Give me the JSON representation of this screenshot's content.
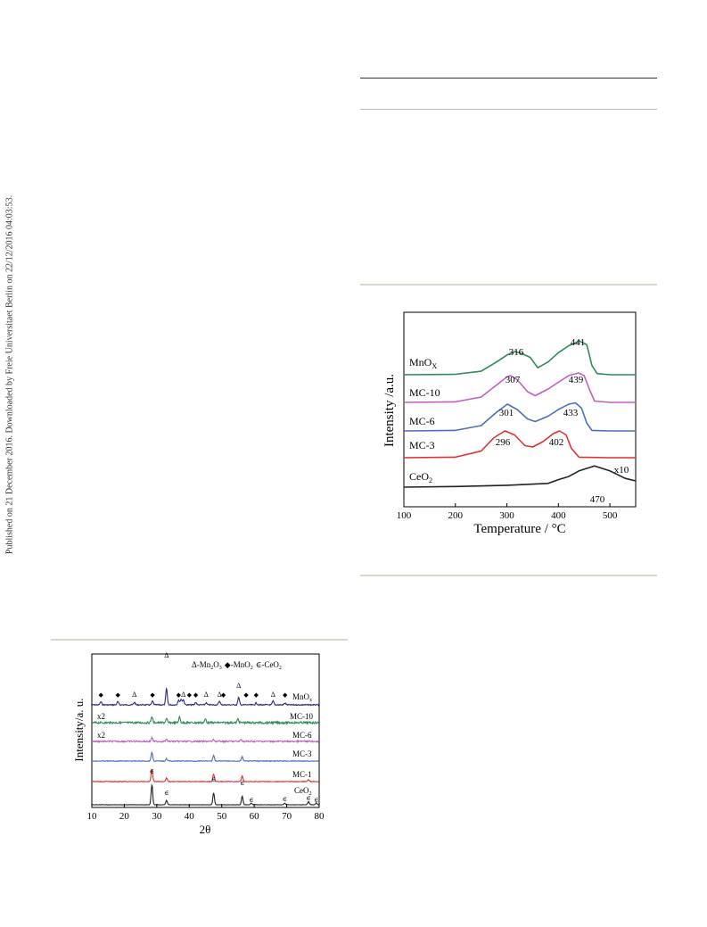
{
  "side_note": "Published on 21 December 2016. Downloaded by Freie Universitaet Berlin on 22/12/2016 04:03:53.",
  "tpr_chart": {
    "ylabel": "Intensity /a.u.",
    "xlabel": "Temperature / °C",
    "x_ticks": [
      "100",
      "200",
      "300",
      "400",
      "500"
    ],
    "series_labels": {
      "mnox": "MnO",
      "mnox_sub": "X",
      "mc10": "MC-10",
      "mc6": "MC-6",
      "mc3": "MC-3",
      "ceo2": "CeO",
      "ceo2_sub": "2"
    },
    "peak_labels": {
      "mnox_1": "316",
      "mnox_2": "441",
      "mc10_1": "307",
      "mc10_2": "439",
      "mc6_1": "301",
      "mc6_2": "433",
      "mc3_1": "296",
      "mc3_2": "402",
      "ceo2_1": "470"
    },
    "scale_note": "x10"
  },
  "xrd_chart": {
    "ylabel": "Intensity/a. u.",
    "xlabel": "2θ",
    "x_ticks": [
      "10",
      "20",
      "30",
      "40",
      "50",
      "60",
      "70",
      "80"
    ],
    "legend": {
      "tri": "Δ",
      "mn2o3_a": "-Mn",
      "mn2o3_s1": "2",
      "mn2o3_b": "O",
      "mn2o3_s2": "3",
      "dia": "◆",
      "mno2_a": "-MnO",
      "mno2_s": "2",
      "ceo2_sym": "∈",
      "ceo2_a": "-CeO",
      "ceo2_s": "2"
    },
    "series_labels": {
      "mnox": "MnO",
      "mnox_sub": "x",
      "mc10": "MC-10",
      "mc6": "MC-6",
      "mc3": "MC-3",
      "mc1": "MC-1",
      "ceo2": "CeO",
      "ceo2_sub": "2"
    },
    "scale_notes": {
      "mc10": "x2",
      "mc6": "x2"
    }
  },
  "chart_data": [
    {
      "type": "line",
      "xlabel": "Temperature / °C",
      "ylabel": "Intensity /a.u.",
      "xlim": [
        100,
        550
      ],
      "series": [
        {
          "name": "MnOX",
          "color": "#2e8b57",
          "x": [
            100,
            200,
            250,
            280,
            300,
            316,
            330,
            345,
            360,
            380,
            400,
            420,
            441,
            455,
            465,
            475,
            500,
            550
          ],
          "y": [
            0,
            0.02,
            0.15,
            0.55,
            0.85,
            1.0,
            0.9,
            0.75,
            0.3,
            0.55,
            0.95,
            1.25,
            1.45,
            1.3,
            0.4,
            0.05,
            0,
            0
          ]
        },
        {
          "name": "MC-10",
          "color": "#c060c0",
          "x": [
            100,
            200,
            250,
            280,
            300,
            307,
            320,
            340,
            355,
            380,
            400,
            420,
            439,
            450,
            460,
            470,
            500,
            550
          ],
          "y": [
            0,
            0.02,
            0.2,
            0.65,
            0.95,
            1.0,
            0.85,
            0.4,
            0.25,
            0.5,
            0.75,
            1.0,
            1.1,
            1.0,
            0.5,
            0.05,
            0,
            0
          ]
        },
        {
          "name": "MC-6",
          "color": "#4a6fc0",
          "x": [
            100,
            200,
            250,
            280,
            301,
            320,
            340,
            355,
            380,
            400,
            420,
            433,
            445,
            455,
            465,
            500,
            550
          ],
          "y": [
            0,
            0.02,
            0.2,
            0.7,
            1.0,
            0.8,
            0.45,
            0.35,
            0.55,
            0.8,
            1.0,
            1.05,
            0.85,
            0.3,
            0.02,
            0,
            0
          ]
        },
        {
          "name": "MC-3",
          "color": "#e03030",
          "x": [
            100,
            200,
            250,
            275,
            296,
            315,
            335,
            350,
            370,
            390,
            402,
            415,
            425,
            440,
            500,
            550
          ],
          "y": [
            0,
            0.02,
            0.25,
            0.75,
            1.0,
            0.85,
            0.45,
            0.4,
            0.6,
            0.9,
            1.0,
            0.85,
            0.35,
            0.02,
            0,
            0
          ]
        },
        {
          "name": "CeO2",
          "color": "#222222",
          "x": [
            100,
            200,
            300,
            380,
            400,
            420,
            440,
            470,
            500,
            530,
            550
          ],
          "y": [
            0,
            0.05,
            0.15,
            0.3,
            0.6,
            0.85,
            1.3,
            1.7,
            1.3,
            0.7,
            0.5
          ]
        }
      ]
    },
    {
      "type": "line",
      "xlabel": "2θ",
      "ylabel": "Intensity/a. u.",
      "xlim": [
        10,
        80
      ],
      "series": [
        {
          "name": "MnOx",
          "color": "#2b2b8a",
          "peaks": [
            [
              12.8,
              0.25
            ],
            [
              18,
              0.25
            ],
            [
              23.1,
              0.2
            ],
            [
              28.7,
              0.3
            ],
            [
              33,
              1.3
            ],
            [
              36.7,
              0.4
            ],
            [
              37.5,
              0.45
            ],
            [
              38.2,
              0.4
            ],
            [
              42,
              0.2
            ],
            [
              45.2,
              0.15
            ],
            [
              49.3,
              0.3
            ],
            [
              55.2,
              0.6
            ],
            [
              60.6,
              0.15
            ],
            [
              65.8,
              0.3
            ],
            [
              69.5,
              0.15
            ]
          ]
        },
        {
          "name": "MC-10",
          "color": "#2e8b57",
          "peaks": [
            [
              28.5,
              0.5
            ],
            [
              33,
              0.3
            ],
            [
              37,
              0.45
            ],
            [
              45,
              0.3
            ],
            [
              55,
              0.3
            ]
          ]
        },
        {
          "name": "MC-6",
          "color": "#c060c0",
          "peaks": [
            [
              28.5,
              0.3
            ],
            [
              33,
              0.15
            ],
            [
              47.5,
              0.15
            ],
            [
              56,
              0.15
            ]
          ]
        },
        {
          "name": "MC-3",
          "color": "#4a6fc0",
          "peaks": [
            [
              28.5,
              0.7
            ],
            [
              33,
              0.2
            ],
            [
              47.5,
              0.45
            ],
            [
              56.3,
              0.35
            ]
          ]
        },
        {
          "name": "MC-1",
          "color": "#e03030",
          "peaks": [
            [
              28.5,
              1.0
            ],
            [
              33,
              0.3
            ],
            [
              47.5,
              0.6
            ],
            [
              56.3,
              0.45
            ],
            [
              76.7,
              0.15
            ]
          ]
        },
        {
          "name": "CeO2",
          "color": "#222222",
          "peaks": [
            [
              28.5,
              1.6
            ],
            [
              33,
              0.35
            ],
            [
              47.5,
              0.95
            ],
            [
              56.3,
              0.7
            ],
            [
              59.1,
              0.12
            ],
            [
              69.4,
              0.12
            ],
            [
              76.7,
              0.25
            ],
            [
              79.1,
              0.15
            ]
          ]
        }
      ]
    }
  ]
}
